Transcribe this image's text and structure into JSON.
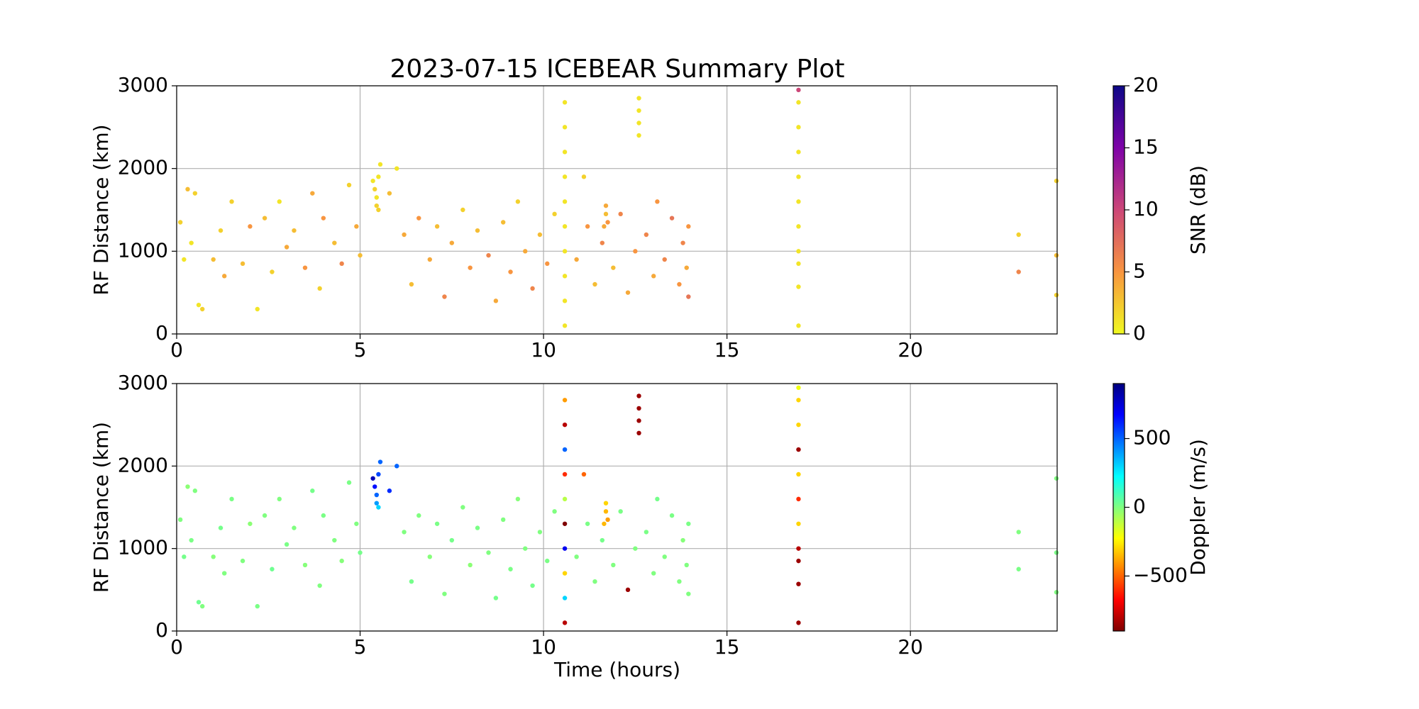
{
  "chart_data": [
    {
      "type": "scatter",
      "title": "2023-07-15 ICEBEAR Summary Plot",
      "y_label": "RF Distance (km)",
      "xlim": [
        0,
        24
      ],
      "xticks": [
        0,
        5,
        10,
        15,
        20
      ],
      "ylim": [
        0,
        3000
      ],
      "yticks": [
        0,
        1000,
        2000,
        3000
      ],
      "grid": true,
      "x": [
        0.1,
        0.2,
        0.3,
        0.4,
        0.5,
        0.6,
        0.7,
        1.0,
        1.2,
        1.3,
        1.5,
        1.8,
        2.0,
        2.2,
        2.4,
        2.6,
        2.8,
        3.0,
        3.2,
        3.5,
        3.7,
        3.9,
        4.0,
        4.3,
        4.5,
        4.7,
        4.9,
        5.0,
        5.35,
        5.4,
        5.45,
        5.45,
        5.5,
        5.5,
        5.55,
        5.8,
        6.0,
        6.2,
        6.4,
        6.6,
        6.9,
        7.1,
        7.3,
        7.5,
        7.8,
        8.0,
        8.2,
        8.5,
        8.7,
        8.9,
        9.1,
        9.3,
        9.5,
        9.7,
        9.9,
        10.1,
        10.3,
        10.58,
        10.58,
        10.58,
        10.58,
        10.58,
        10.58,
        10.58,
        10.58,
        10.58,
        10.58,
        10.9,
        11.1,
        11.2,
        11.4,
        11.6,
        11.65,
        11.7,
        11.7,
        11.75,
        11.9,
        12.1,
        12.3,
        12.5,
        12.6,
        12.6,
        12.6,
        12.6,
        12.8,
        13.0,
        13.1,
        13.3,
        13.5,
        13.7,
        13.8,
        13.9,
        13.95,
        13.95,
        16.95,
        16.95,
        16.95,
        16.95,
        16.95,
        16.95,
        16.95,
        16.95,
        16.95,
        16.95,
        16.95,
        22.95,
        22.95,
        23.98,
        23.98,
        23.98
      ],
      "values": [
        1350,
        900,
        1750,
        1100,
        1700,
        350,
        300,
        900,
        1250,
        700,
        1600,
        850,
        1300,
        300,
        1400,
        750,
        1600,
        1050,
        1250,
        800,
        1700,
        550,
        1400,
        1100,
        850,
        1800,
        1300,
        950,
        1850,
        1750,
        1650,
        1550,
        1900,
        1500,
        2050,
        1700,
        2000,
        1200,
        600,
        1400,
        900,
        1300,
        450,
        1100,
        1500,
        800,
        1250,
        950,
        400,
        1350,
        750,
        1600,
        1000,
        550,
        1200,
        850,
        1450,
        100,
        400,
        700,
        1000,
        1300,
        1600,
        1900,
        2200,
        2500,
        2800,
        900,
        1900,
        1300,
        600,
        1100,
        1300,
        1450,
        1550,
        1350,
        800,
        1450,
        500,
        1000,
        2400,
        2550,
        2700,
        2850,
        1200,
        700,
        1600,
        900,
        1400,
        600,
        1100,
        800,
        1300,
        450,
        100,
        570,
        850,
        1000,
        1300,
        1600,
        1900,
        2200,
        2500,
        2800,
        2950,
        1200,
        750,
        1850,
        950,
        470
      ],
      "color_values": [
        2,
        1,
        3,
        1,
        2,
        1,
        2,
        3,
        2,
        4,
        2,
        3,
        5,
        1,
        3,
        2,
        1,
        4,
        3,
        5,
        4,
        2,
        5,
        3,
        6,
        2,
        4,
        3,
        1,
        2,
        1,
        2,
        1,
        2,
        1,
        3,
        1,
        4,
        3,
        5,
        4,
        3,
        6,
        4,
        2,
        5,
        3,
        6,
        4,
        3,
        5,
        2,
        4,
        6,
        3,
        5,
        2,
        1,
        1,
        1,
        1,
        1,
        1,
        1,
        1,
        1,
        1,
        4,
        2,
        5,
        3,
        6,
        4,
        3,
        4,
        5,
        3,
        6,
        4,
        5,
        1,
        1,
        1,
        1,
        6,
        4,
        5,
        6,
        7,
        5,
        6,
        4,
        5,
        7,
        1,
        1,
        1,
        1,
        1,
        1,
        1,
        1,
        1,
        1,
        10,
        2,
        6,
        2,
        3,
        2
      ],
      "colorbar": {
        "label": "SNR (dB)",
        "lim": [
          0,
          20
        ],
        "ticks": [
          0,
          5,
          10,
          15,
          20
        ],
        "colormap": [
          "#f0f921",
          "#f89540",
          "#cc4778",
          "#7e03a8",
          "#0d0887"
        ]
      }
    },
    {
      "type": "scatter",
      "x_label": "Time (hours)",
      "y_label": "RF Distance (km)",
      "xlim": [
        0,
        24
      ],
      "xticks": [
        0,
        5,
        10,
        15,
        20
      ],
      "ylim": [
        0,
        3000
      ],
      "yticks": [
        0,
        1000,
        2000,
        3000
      ],
      "grid": true,
      "x": [
        0.1,
        0.2,
        0.3,
        0.4,
        0.5,
        0.6,
        0.7,
        1.0,
        1.2,
        1.3,
        1.5,
        1.8,
        2.0,
        2.2,
        2.4,
        2.6,
        2.8,
        3.0,
        3.2,
        3.5,
        3.7,
        3.9,
        4.0,
        4.3,
        4.5,
        4.7,
        4.9,
        5.0,
        5.35,
        5.4,
        5.45,
        5.45,
        5.5,
        5.5,
        5.55,
        5.8,
        6.0,
        6.2,
        6.4,
        6.6,
        6.9,
        7.1,
        7.3,
        7.5,
        7.8,
        8.0,
        8.2,
        8.5,
        8.7,
        8.9,
        9.1,
        9.3,
        9.5,
        9.7,
        9.9,
        10.1,
        10.3,
        10.58,
        10.58,
        10.58,
        10.58,
        10.58,
        10.58,
        10.58,
        10.58,
        10.58,
        10.58,
        10.9,
        11.1,
        11.2,
        11.4,
        11.6,
        11.65,
        11.7,
        11.7,
        11.75,
        11.9,
        12.1,
        12.3,
        12.5,
        12.6,
        12.6,
        12.6,
        12.6,
        12.8,
        13.0,
        13.1,
        13.3,
        13.5,
        13.7,
        13.8,
        13.9,
        13.95,
        13.95,
        16.95,
        16.95,
        16.95,
        16.95,
        16.95,
        16.95,
        16.95,
        16.95,
        16.95,
        16.95,
        16.95,
        22.95,
        22.95,
        23.98,
        23.98,
        23.98
      ],
      "values": [
        1350,
        900,
        1750,
        1100,
        1700,
        350,
        300,
        900,
        1250,
        700,
        1600,
        850,
        1300,
        300,
        1400,
        750,
        1600,
        1050,
        1250,
        800,
        1700,
        550,
        1400,
        1100,
        850,
        1800,
        1300,
        950,
        1850,
        1750,
        1650,
        1550,
        1900,
        1500,
        2050,
        1700,
        2000,
        1200,
        600,
        1400,
        900,
        1300,
        450,
        1100,
        1500,
        800,
        1250,
        950,
        400,
        1350,
        750,
        1600,
        1000,
        550,
        1200,
        850,
        1450,
        100,
        400,
        700,
        1000,
        1300,
        1600,
        1900,
        2200,
        2500,
        2800,
        900,
        1900,
        1300,
        600,
        1100,
        1300,
        1450,
        1550,
        1350,
        800,
        1450,
        500,
        1000,
        2400,
        2550,
        2700,
        2850,
        1200,
        700,
        1600,
        900,
        1400,
        600,
        1100,
        800,
        1300,
        450,
        100,
        570,
        850,
        1000,
        1300,
        1600,
        1900,
        2200,
        2500,
        2800,
        2950,
        1200,
        750,
        1850,
        950,
        470
      ],
      "color_values": [
        0,
        20,
        -20,
        10,
        0,
        30,
        0,
        -10,
        20,
        0,
        10,
        0,
        -20,
        10,
        0,
        30,
        0,
        10,
        0,
        -10,
        20,
        0,
        10,
        0,
        -10,
        10,
        0,
        20,
        800,
        650,
        500,
        400,
        550,
        300,
        500,
        600,
        500,
        0,
        20,
        0,
        -10,
        10,
        0,
        20,
        0,
        -20,
        10,
        0,
        20,
        0,
        10,
        -10,
        0,
        20,
        0,
        10,
        0,
        -800,
        300,
        -300,
        700,
        -900,
        -100,
        -600,
        500,
        -800,
        -400,
        0,
        -500,
        10,
        0,
        20,
        -350,
        -350,
        -300,
        -400,
        0,
        10,
        -850,
        0,
        -850,
        -850,
        -850,
        -850,
        10,
        0,
        20,
        0,
        10,
        0,
        -10,
        0,
        10,
        0,
        -850,
        -850,
        -850,
        -800,
        -300,
        -600,
        -300,
        -850,
        -300,
        -300,
        -200,
        0,
        10,
        0,
        10,
        0
      ],
      "colorbar": {
        "label": "Doppler (m/s)",
        "lim": [
          -900,
          900
        ],
        "ticks": [
          {
            "value": -500,
            "label": "−500"
          },
          0,
          500
        ],
        "colormap": [
          "#7f0000",
          "#ff0000",
          "#ff8000",
          "#ffff00",
          "#80ff80",
          "#00ffff",
          "#0080ff",
          "#0000ff",
          "#00007f"
        ]
      }
    }
  ]
}
